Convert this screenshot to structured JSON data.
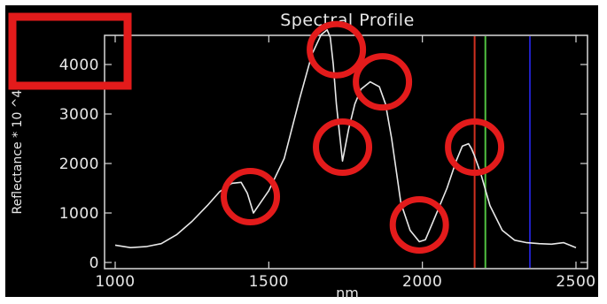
{
  "chart_data": {
    "type": "line",
    "title": "Spectral Profile",
    "xlabel": "nm",
    "ylabel": "Reflectance * 10 ^4",
    "xlim": [
      1000,
      2500
    ],
    "ylim": [
      0,
      4800
    ],
    "x_ticks": [
      1000,
      1500,
      2000,
      2500
    ],
    "y_ticks": [
      0,
      1000,
      2000,
      3000,
      4000
    ],
    "grid": false,
    "series": [
      {
        "color": "#e8e8e8",
        "x": [
          1000,
          1050,
          1100,
          1150,
          1200,
          1250,
          1300,
          1340,
          1380,
          1410,
          1430,
          1450,
          1470,
          1500,
          1550,
          1600,
          1640,
          1670,
          1690,
          1700,
          1710,
          1720,
          1740,
          1760,
          1780,
          1800,
          1830,
          1860,
          1880,
          1900,
          1930,
          1960,
          1990,
          2010,
          2040,
          2080,
          2110,
          2130,
          2150,
          2160,
          2170,
          2190,
          2220,
          2260,
          2300,
          2340,
          2380,
          2420,
          2460,
          2500
        ],
        "y": [
          350,
          300,
          320,
          380,
          560,
          830,
          1150,
          1430,
          1600,
          1620,
          1400,
          1000,
          1180,
          1450,
          2100,
          3300,
          4200,
          4600,
          4700,
          4550,
          4000,
          3200,
          2050,
          2700,
          3200,
          3500,
          3650,
          3550,
          3200,
          2500,
          1200,
          650,
          420,
          460,
          900,
          1500,
          2050,
          2350,
          2400,
          2300,
          2150,
          1800,
          1150,
          650,
          450,
          400,
          380,
          370,
          400,
          300
        ]
      }
    ],
    "vertical_lines": [
      {
        "x": 2170,
        "color": "#d03020"
      },
      {
        "x": 2205,
        "color": "#50c040"
      },
      {
        "x": 2350,
        "color": "#2020c0"
      }
    ]
  },
  "annotations": {
    "circle_color": "#e31b1b",
    "circles": [
      {
        "x": 1440,
        "y": 1330
      },
      {
        "x": 1720,
        "y": 4300
      },
      {
        "x": 1870,
        "y": 3650
      },
      {
        "x": 1740,
        "y": 2330
      },
      {
        "x": 1990,
        "y": 760
      },
      {
        "x": 2170,
        "y": 2330
      }
    ]
  }
}
